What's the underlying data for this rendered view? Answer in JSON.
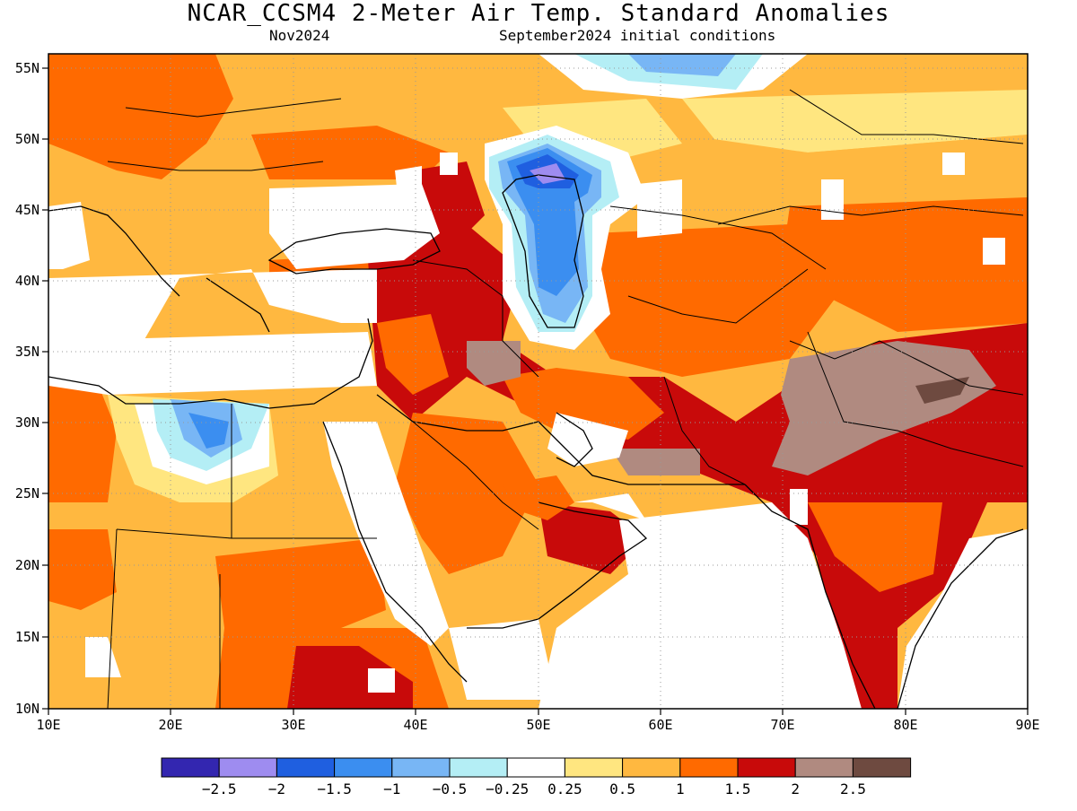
{
  "title": "NCAR_CCSM4 2-Meter Air Temp. Standard Anomalies",
  "subtitle_left": "Nov2024",
  "subtitle_right": "September2024 initial conditions",
  "axes": {
    "lat_ticks": [
      "55N",
      "50N",
      "45N",
      "40N",
      "35N",
      "30N",
      "25N",
      "20N",
      "15N",
      "10N"
    ],
    "lon_ticks": [
      "10E",
      "20E",
      "30E",
      "40E",
      "50E",
      "60E",
      "70E",
      "80E",
      "90E"
    ],
    "lon_range": [
      10,
      90
    ],
    "lat_range": [
      10,
      56
    ],
    "grid": "dotted"
  },
  "legend": {
    "colors": [
      "#3326b0",
      "#9e8cf0",
      "#1f5fe0",
      "#3b8ef0",
      "#78b6f5",
      "#b4eef5",
      "#ffffff",
      "#ffe680",
      "#ffb840",
      "#ff6a00",
      "#c80a0a",
      "#b08a80",
      "#6e4a40"
    ],
    "labels": [
      "-2.5",
      "-2",
      "-1.5",
      "-1",
      "-0.5",
      "-0.25",
      "0.25",
      "0.5",
      "1",
      "1.5",
      "2",
      "2.5"
    ]
  },
  "regions": {
    "note_free": true,
    "palette": {
      "white": "#ffffff",
      "lightyellow": "#ffe680",
      "orange": "#ffb840",
      "darkorange": "#ff6a00",
      "red": "#c80a0a",
      "brown": "#b08a80",
      "darkbrown": "#6e4a40",
      "cyan": "#b4eef5",
      "lightblue": "#78b6f5",
      "blue": "#3b8ef0",
      "deepblue": "#1f5fe0",
      "lavender": "#9e8cf0"
    }
  }
}
